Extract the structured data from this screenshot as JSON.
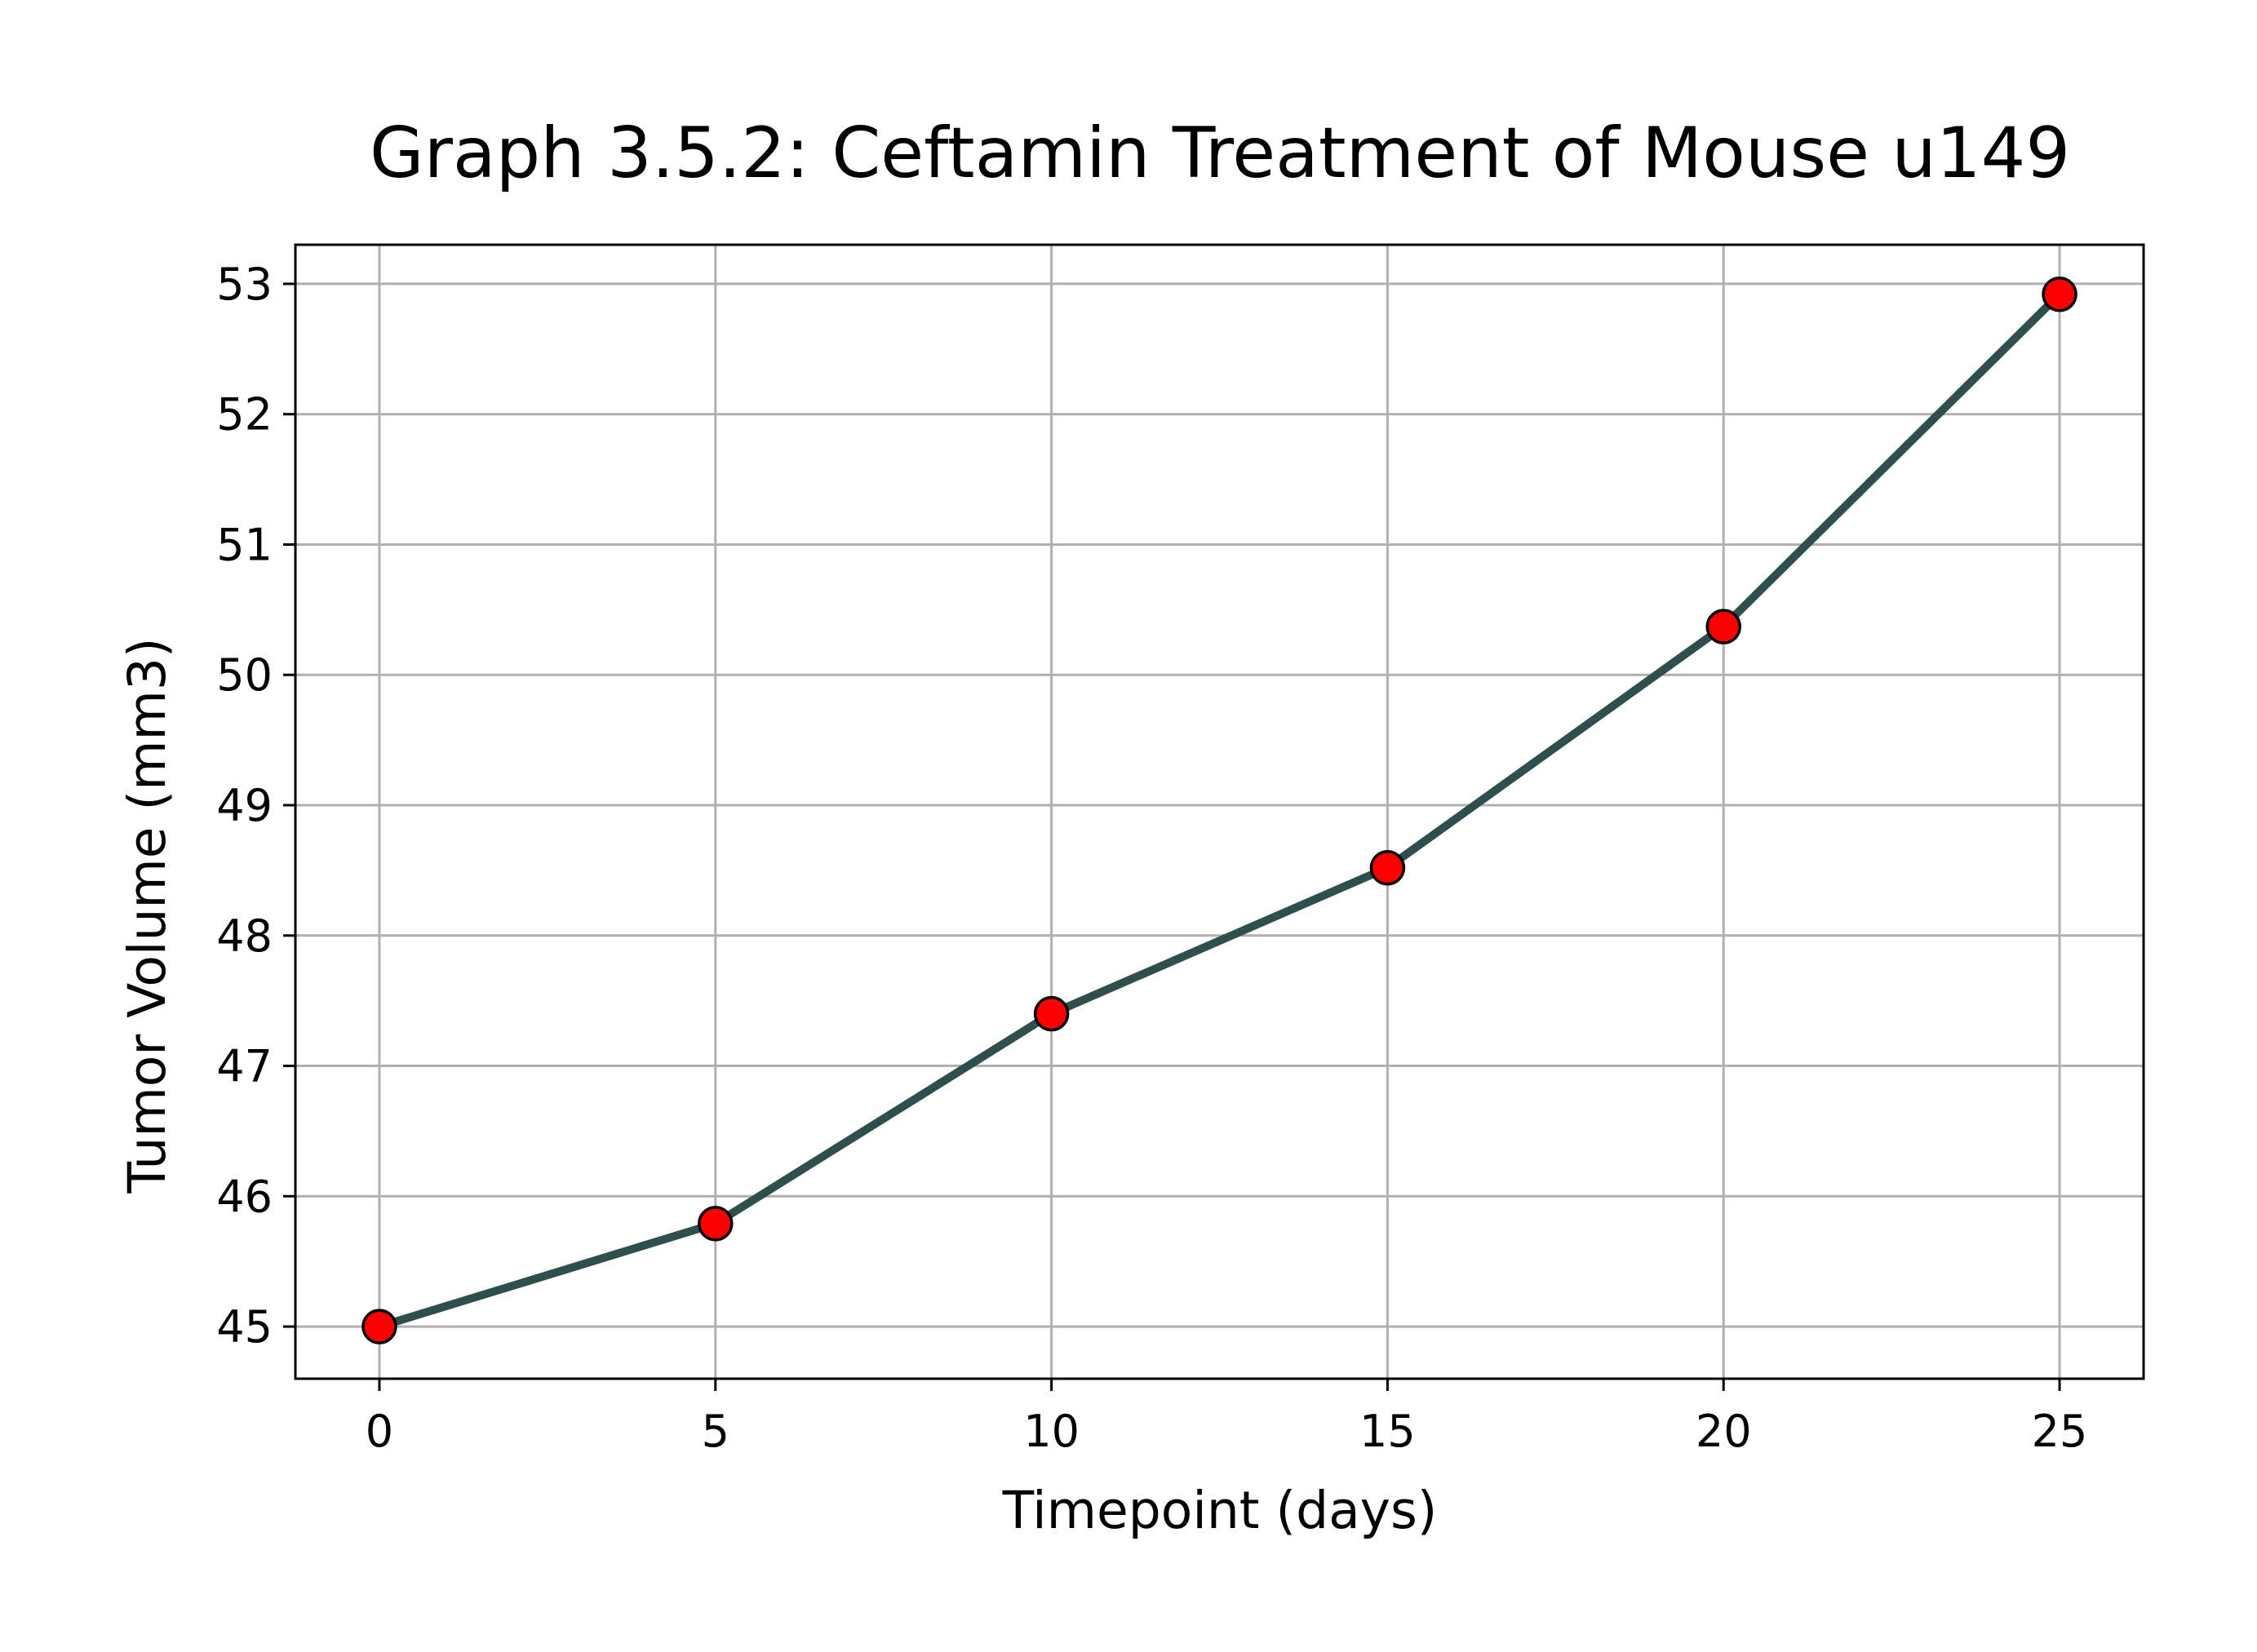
{
  "chart_data": {
    "type": "line",
    "title": "Graph 3.5.2: Ceftamin Treatment of Mouse u149",
    "xlabel": "Timepoint (days)",
    "ylabel": "Tumor Volume (mm3)",
    "x": [
      0,
      5,
      10,
      15,
      20,
      25
    ],
    "series": [
      {
        "values": [
          45.0,
          45.79,
          47.4,
          48.52,
          50.37,
          52.92
        ]
      }
    ],
    "xlim": [
      -1.25,
      26.25
    ],
    "ylim": [
      44.6,
      53.3
    ],
    "xticks": [
      0,
      5,
      10,
      15,
      20,
      25
    ],
    "yticks": [
      45,
      46,
      47,
      48,
      49,
      50,
      51,
      52,
      53
    ],
    "xtick_labels": [
      "0",
      "5",
      "10",
      "15",
      "20",
      "25"
    ],
    "ytick_labels": [
      "45",
      "46",
      "47",
      "48",
      "49",
      "50",
      "51",
      "52",
      "53"
    ],
    "grid": true,
    "line_color": "#2f4f4f",
    "marker_color": "#ff0000",
    "marker_edge_color": "#000000",
    "marker": "circle"
  }
}
